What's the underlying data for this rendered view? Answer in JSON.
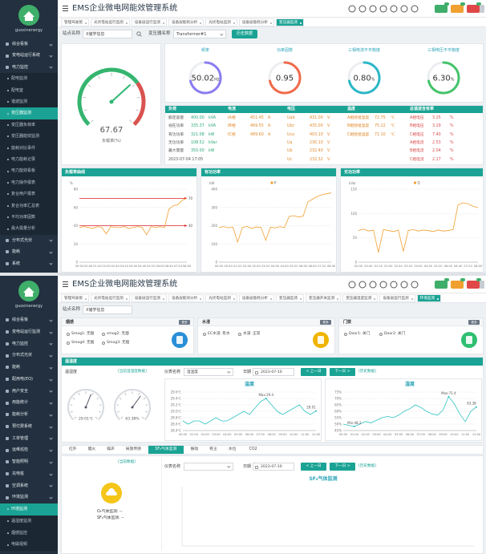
{
  "screen1": {
    "brand": "guoxinenergy",
    "title": "EMS企业微电网能效管理系统",
    "active_menu": 6,
    "menu": [
      {
        "text": "综合看板"
      },
      {
        "text": "变电站运行系统"
      },
      {
        "text": "电力监控"
      },
      {
        "text": "配电监测",
        "level": 2
      },
      {
        "text": "配电室",
        "level": 2
      },
      {
        "text": "谐波监测",
        "level": 2
      },
      {
        "text": "变压器监测",
        "level": 2
      },
      {
        "text": "变压器负荷率",
        "level": 2
      },
      {
        "text": "变压器能效监测",
        "level": 2
      },
      {
        "text": "能耗对比事件",
        "level": 2
      },
      {
        "text": "电力能耗记录",
        "level": 2
      },
      {
        "text": "电力能效看板",
        "level": 2
      },
      {
        "text": "电力操作报表",
        "level": 2
      },
      {
        "text": "复合用户报表",
        "level": 2
      },
      {
        "text": "复合功率汇总表",
        "level": 2
      },
      {
        "text": "平均功率因数",
        "level": 2
      },
      {
        "text": "最大需量分析",
        "level": 2
      },
      {
        "text": "分布式光伏"
      },
      {
        "text": "能耗"
      },
      {
        "text": "系统"
      }
    ],
    "active_tab": 6,
    "tabs": [
      "管理驾驶舱",
      "光伏电站运行监测",
      "设备层运行监测",
      "设备层能耗分析",
      "光伏电站监测",
      "设备层能耗分析",
      "变压器监测"
    ],
    "filter": {
      "site_label": "站点名称",
      "site": "X储学信息",
      "transformer_label": "变压器名称",
      "transformer": "Transformer#1",
      "button": "历史数据"
    },
    "gauge": {
      "value": 67.67,
      "range": [
        0,
        100
      ],
      "label": "负载率(%)"
    },
    "indicators": [
      {
        "title": "频率",
        "value": "50.02",
        "unit": "Hz",
        "color": "#8a7cf0"
      },
      {
        "title": "功率因数",
        "value": "0.95",
        "color": "#f06a4a"
      },
      {
        "title": "三相电流不平衡度",
        "value": "0.80",
        "unit": "%",
        "color": "#2bb7c8"
      },
      {
        "title": "三相电压不平衡度",
        "value": "6.30",
        "unit": "%",
        "color": "#43c36a"
      }
    ],
    "table": [
      {
        "header": "负荷",
        "items": [
          {
            "name": "额定容量",
            "value": "400.00",
            "unit": "kVA"
          },
          {
            "name": "视在功率",
            "value": "335.37",
            "unit": "kVA"
          },
          {
            "name": "有功功率",
            "value": "321.08",
            "unit": "kW"
          },
          {
            "name": "无功功率",
            "value": "108.52",
            "unit": "kVar"
          },
          {
            "name": "最大需量",
            "value": "350.00",
            "unit": "kW"
          },
          {
            "name": "2023-07-04 17:05"
          }
        ]
      },
      {
        "header": "电流",
        "items": [
          {
            "name": "IA相",
            "value": "451.45",
            "unit": "A"
          },
          {
            "name": "IB相",
            "value": "469.55",
            "unit": "A"
          },
          {
            "name": "IC相",
            "value": "489.60",
            "unit": "A"
          }
        ]
      },
      {
        "header": "电压",
        "items": [
          {
            "name": "Uab",
            "value": "431.00",
            "unit": "V"
          },
          {
            "name": "Ubc",
            "value": "435.00",
            "unit": "V"
          },
          {
            "name": "Uca",
            "value": "403.10",
            "unit": "V"
          },
          {
            "name": "Ua",
            "value": "230.10",
            "unit": "V"
          },
          {
            "name": "Ub",
            "value": "232.40",
            "unit": "V"
          },
          {
            "name": "Uc",
            "value": "232.32",
            "unit": "V"
          }
        ]
      },
      {
        "header": "温度",
        "items": [
          {
            "name": "A相绕组温度",
            "value": "72.75",
            "unit": "℃"
          },
          {
            "name": "B相绕组温度",
            "value": "75.22",
            "unit": "℃"
          },
          {
            "name": "C相绕组温度",
            "value": "71.10",
            "unit": "℃"
          }
        ]
      },
      {
        "header": "总谐波含有率",
        "items": [
          {
            "name": "A相电压",
            "value": "3.25",
            "unit": "%"
          },
          {
            "name": "B相电压",
            "value": "3.29",
            "unit": "%"
          },
          {
            "name": "C相电压",
            "value": "7.40",
            "unit": "%"
          },
          {
            "name": "A相电流",
            "value": "2.53",
            "unit": "%"
          },
          {
            "name": "B相电流",
            "value": "2.04",
            "unit": "%"
          },
          {
            "name": "C相电流",
            "value": "2.17",
            "unit": "%"
          }
        ]
      }
    ],
    "charts": [
      {
        "type": "line",
        "title": "负载率曲线",
        "unit": "%",
        "color": "#f0a030",
        "ylim": [
          0,
          80
        ],
        "yticks": [
          0,
          20,
          40,
          60,
          80
        ],
        "thresholds": [
          70,
          40
        ],
        "threshold_color": "#e02020",
        "categories": [
          "00:00",
          null,
          "00:40",
          null,
          "01:20",
          null,
          "02:00",
          null,
          "02:40",
          null,
          "03:20",
          null,
          "04:00",
          null,
          "04:40",
          null,
          "05:20",
          null,
          "06:00",
          null,
          "06:40",
          null,
          "07:20",
          null,
          "08:00"
        ],
        "values": [
          38,
          39,
          38,
          37,
          39,
          38,
          31,
          39,
          38,
          38,
          39,
          37,
          38,
          39,
          38,
          30,
          39,
          38,
          39,
          38,
          58,
          62,
          63,
          68,
          70
        ]
      },
      {
        "type": "line",
        "title": "有功功率",
        "unit": "kW",
        "legend": "P",
        "color": "#f0a030",
        "ylim": [
          0,
          400
        ],
        "yticks": [
          0,
          100,
          200,
          300,
          400
        ],
        "categories": [
          "00:00",
          null,
          "00:40",
          null,
          "01:20",
          null,
          "02:00",
          null,
          "02:40",
          null,
          "03:20",
          null,
          "04:00",
          null,
          "04:40",
          null,
          "05:20",
          null,
          "06:00",
          null,
          "06:40",
          null,
          "07:20",
          null,
          "08:00"
        ],
        "values": [
          190,
          195,
          188,
          192,
          110,
          190,
          196,
          185,
          193,
          190,
          120,
          192,
          188,
          195,
          190,
          250,
          255,
          248,
          252,
          330,
          345,
          360,
          370,
          375,
          380
        ]
      },
      {
        "type": "line",
        "title": "无功功率",
        "unit": "kVar",
        "legend": "Q",
        "color": "#f0a030",
        "ylim": [
          0,
          150
        ],
        "yticks": [
          0,
          50,
          100,
          150
        ],
        "categories": [
          "00:00",
          null,
          "00:40",
          null,
          "01:20",
          null,
          "02:00",
          null,
          "02:40",
          null,
          "03:20",
          null,
          "04:00",
          null,
          "04:40",
          null,
          "05:20",
          null,
          "06:00",
          null,
          "06:40",
          null,
          "07:20",
          null,
          "08:00"
        ],
        "values": [
          65,
          68,
          64,
          66,
          20,
          67,
          65,
          63,
          66,
          22,
          65,
          67,
          64,
          66,
          65,
          63,
          66,
          64,
          65,
          67,
          118,
          122,
          120,
          115,
          112
        ]
      }
    ]
  },
  "screen2": {
    "brand": "guoxinenergy",
    "title": "EMS企业微电网能效管理系统",
    "active_menu": 16,
    "menu": [
      {
        "text": "综合看板"
      },
      {
        "text": "变电站运行监测"
      },
      {
        "text": "电力监控"
      },
      {
        "text": "分布式光伏"
      },
      {
        "text": "能耗"
      },
      {
        "text": "配用电(EO)"
      },
      {
        "text": "用户安全"
      },
      {
        "text": "用能统计"
      },
      {
        "text": "能耗分析"
      },
      {
        "text": "预付费系统"
      },
      {
        "text": "工单管理"
      },
      {
        "text": "运维巡检"
      },
      {
        "text": "智能照明"
      },
      {
        "text": "充电桩"
      },
      {
        "text": "空调系统"
      },
      {
        "text": "环境监测"
      },
      {
        "text": "环境监测",
        "level": 2
      },
      {
        "text": "温湿度监测",
        "level": 2
      },
      {
        "text": "烟感监控",
        "level": 2
      },
      {
        "text": "电磁视频",
        "level": 2
      }
    ],
    "active_tab": 10,
    "tabs": [
      "管理驾驶舱",
      "光伏电站运行监测",
      "设备层运行监测",
      "设备层能效分析",
      "光伏电站监测",
      "设备层能耗分析",
      "变压器监测",
      "变压器开关监测",
      "变压器温度监测",
      "设备层运行监测",
      "环境监测"
    ],
    "filter": {
      "site_label": "站点名称",
      "site": "X储学信息"
    },
    "cards": [
      {
        "title": "烟感",
        "more": "更多",
        "items": [
          "Smog1: 无烟",
          "smog2: 无烟",
          "Smog4: 无烟",
          "Smog3: 无烟"
        ],
        "icon_color": "#2a8fd6"
      },
      {
        "title": "水浸",
        "more": "更多",
        "items": [
          "EC水浸: 有水",
          "水浸: 正常"
        ],
        "icon_color": "#f0b400"
      },
      {
        "title": "门禁",
        "more": "更多",
        "items": [
          "Door1: 关门",
          "Door2: 关门"
        ],
        "icon_color": "#2fbf71"
      }
    ],
    "env": {
      "title": "温湿度",
      "label": "温湿度",
      "link": "[当前温湿度数据]",
      "gauges": [
        {
          "value": 29.01,
          "range": [
            0,
            50
          ],
          "unit": "℃"
        },
        {
          "value": 63.38,
          "range": [
            0,
            100
          ],
          "unit": "%"
        }
      ],
      "meter_label": "仪表名称",
      "meter": "温湿度",
      "date_label": "日期",
      "date": "2023-07-10",
      "prev": "< 上一日",
      "next": "下一日 >",
      "history": "[历史数据]",
      "charts": [
        {
          "type": "line",
          "title": "温度",
          "color": "#33c2c2",
          "ylim": [
            28.4,
            29.6
          ],
          "yticks": [
            {
              "value": 28.4,
              "label": "28.4℃"
            },
            {
              "value": 28.6,
              "label": "28.6℃"
            },
            {
              "value": 28.8,
              "label": "28.8℃"
            },
            {
              "value": 29.0,
              "label": "29.0℃"
            },
            {
              "value": 29.2,
              "label": "29.2℃"
            },
            {
              "value": 29.4,
              "label": "29.4℃"
            },
            {
              "value": 29.6,
              "label": "29.6℃"
            }
          ],
          "categories": [
            "00:00",
            null,
            "01:00",
            null,
            "02:00",
            null,
            "03:00",
            null,
            "04:00",
            null,
            "05:00",
            null,
            "06:00",
            null,
            "07:00",
            null,
            "08:00",
            null,
            "09:00",
            null,
            "10:00",
            null,
            "11:00",
            null,
            "12:00"
          ],
          "values": [
            28.7,
            28.6,
            28.7,
            28.7,
            28.6,
            28.7,
            28.8,
            28.7,
            28.7,
            28.8,
            28.9,
            29.0,
            28.9,
            29.1,
            29.3,
            29.4,
            29.2,
            29.0,
            28.9,
            29.0,
            29.1,
            29.2,
            29.0,
            28.9,
            29.01
          ],
          "annotations": [
            {
              "text": "Max:29.4",
              "value": 29.4
            },
            {
              "text": "29.01",
              "value": 29.01
            }
          ]
        },
        {
          "type": "line",
          "title": "湿度",
          "color": "#33c2c2",
          "ylim": [
            45,
            75
          ],
          "yticks": [
            {
              "value": 45,
              "label": "45%"
            },
            {
              "value": 50,
              "label": "50%"
            },
            {
              "value": 55,
              "label": "55%"
            },
            {
              "value": 60,
              "label": "60%"
            },
            {
              "value": 65,
              "label": "65%"
            },
            {
              "value": 70,
              "label": "70%"
            },
            {
              "value": 75,
              "label": "75%"
            }
          ],
          "categories": [
            "00:00",
            null,
            "01:00",
            null,
            "02:00",
            null,
            "03:00",
            null,
            "04:00",
            null,
            "05:00",
            null,
            "06:00",
            null,
            "07:00",
            null,
            "08:00",
            null,
            "09:00",
            null,
            "10:00",
            null,
            "11:00",
            null,
            "12:00"
          ],
          "values": [
            50,
            49,
            48.2,
            50,
            52,
            51,
            53,
            55,
            56,
            55,
            57,
            60,
            62,
            65,
            63,
            60,
            58,
            57,
            61,
            71.4,
            66,
            58,
            52,
            60,
            63.38
          ],
          "annotations": [
            {
              "text": "Max:71.4",
              "value": 71.4
            },
            {
              "text": "Min:48.2",
              "value": 48.2
            },
            {
              "text": "63.38",
              "value": 63.38
            }
          ]
        }
      ]
    },
    "gas": {
      "tabs": [
        "红外",
        "烟火",
        "噪声",
        "局放传感",
        "SF₆气体监测",
        "振动",
        "有尘",
        "水位",
        "CO2"
      ],
      "active_tab": 4,
      "link": "[当前数据]",
      "readings": [
        "O₂气体监测: --",
        "SF₆气体监测: --"
      ],
      "meter_label": "仪表名称",
      "date_label": "日期",
      "date": "2023-07-10",
      "prev": "< 上一日",
      "next": "下一日 >",
      "history": "[历史数据]",
      "chart_title": "SF₆气体监测"
    }
  }
}
